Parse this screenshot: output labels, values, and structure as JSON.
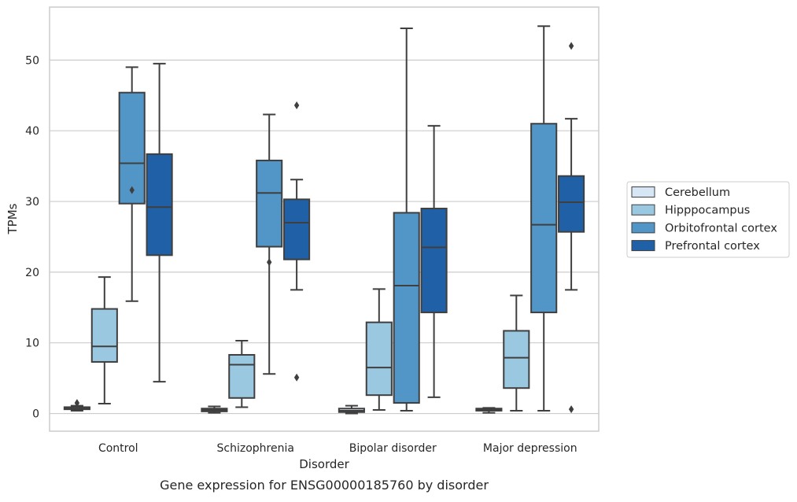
{
  "chart_data": {
    "type": "box",
    "caption": "Gene expression for ENSG00000185760 by disorder",
    "xlabel": "Disorder",
    "ylabel": "TPMs",
    "ylim": [
      -2.5,
      57.5
    ],
    "yticks": [
      0,
      10,
      20,
      30,
      40,
      50
    ],
    "grid": true,
    "legend_position": "right",
    "categories": [
      "Control",
      "Schizophrenia",
      "Bipolar disorder",
      "Major depression"
    ],
    "series": [
      {
        "name": "Cerebellum",
        "color": "#d6e6f4",
        "boxes": [
          {
            "whislo": 0.4,
            "q1": 0.6,
            "med": 0.7,
            "q3": 0.9,
            "whishi": 1.1,
            "fliers": [
              1.5
            ]
          },
          {
            "whislo": 0.1,
            "q1": 0.3,
            "med": 0.5,
            "q3": 0.7,
            "whishi": 1.0,
            "fliers": []
          },
          {
            "whislo": 0.0,
            "q1": 0.2,
            "med": 0.4,
            "q3": 0.7,
            "whishi": 1.1,
            "fliers": []
          },
          {
            "whislo": 0.1,
            "q1": 0.4,
            "med": 0.5,
            "q3": 0.7,
            "whishi": 0.8,
            "fliers": []
          }
        ]
      },
      {
        "name": "Hipppocampus",
        "color": "#9ac8e0",
        "boxes": [
          {
            "whislo": 1.4,
            "q1": 7.3,
            "med": 9.5,
            "q3": 14.8,
            "whishi": 19.3,
            "fliers": []
          },
          {
            "whislo": 0.9,
            "q1": 2.2,
            "med": 6.9,
            "q3": 8.3,
            "whishi": 10.3,
            "fliers": []
          },
          {
            "whislo": 0.5,
            "q1": 2.6,
            "med": 6.5,
            "q3": 12.9,
            "whishi": 17.6,
            "fliers": []
          },
          {
            "whislo": 0.4,
            "q1": 3.6,
            "med": 7.9,
            "q3": 11.7,
            "whishi": 16.7,
            "fliers": []
          }
        ]
      },
      {
        "name": "Orbitofrontal cortex",
        "color": "#5295c7",
        "boxes": [
          {
            "whislo": 15.9,
            "q1": 29.7,
            "med": 35.4,
            "q3": 45.4,
            "whishi": 49.0,
            "fliers": [
              31.6
            ]
          },
          {
            "whislo": 5.6,
            "q1": 23.6,
            "med": 31.2,
            "q3": 35.8,
            "whishi": 42.3,
            "fliers": [
              21.4
            ]
          },
          {
            "whislo": 0.4,
            "q1": 1.5,
            "med": 18.1,
            "q3": 28.4,
            "whishi": 54.5,
            "fliers": []
          },
          {
            "whislo": 0.4,
            "q1": 14.3,
            "med": 26.7,
            "q3": 41.0,
            "whishi": 54.8,
            "fliers": []
          }
        ]
      },
      {
        "name": "Prefrontal cortex",
        "color": "#2060a6",
        "boxes": [
          {
            "whislo": 4.5,
            "q1": 22.4,
            "med": 29.2,
            "q3": 36.7,
            "whishi": 49.5,
            "fliers": []
          },
          {
            "whislo": 17.5,
            "q1": 21.8,
            "med": 27.0,
            "q3": 30.3,
            "whishi": 33.1,
            "fliers": [
              43.6,
              5.1
            ]
          },
          {
            "whislo": 2.3,
            "q1": 14.3,
            "med": 23.5,
            "q3": 29.0,
            "whishi": 40.7,
            "fliers": []
          },
          {
            "whislo": 17.5,
            "q1": 25.7,
            "med": 29.9,
            "q3": 33.6,
            "whishi": 41.7,
            "fliers": [
              52.0,
              0.6
            ]
          }
        ]
      }
    ]
  }
}
